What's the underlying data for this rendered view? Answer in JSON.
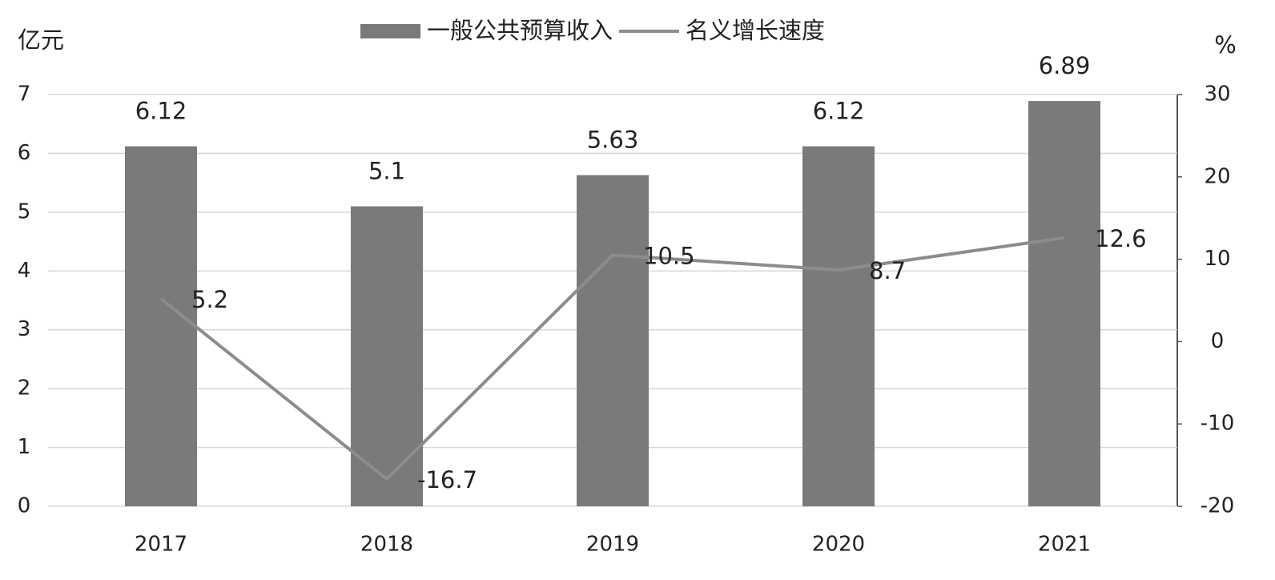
{
  "chart_data": {
    "type": "bar",
    "y_label": "亿元",
    "y2_label": "%",
    "categories": [
      "2017",
      "2018",
      "2019",
      "2020",
      "2021"
    ],
    "series": [
      {
        "name": "一般公共预算收入",
        "type": "bar",
        "color": "#7a7a7a",
        "values": [
          6.12,
          5.1,
          5.63,
          6.12,
          6.89
        ]
      },
      {
        "name": "名义增长速度",
        "type": "line",
        "axis": "y2",
        "color": "#8c8c8c",
        "values": [
          5.2,
          -16.7,
          10.5,
          8.7,
          12.6
        ]
      }
    ],
    "ylim": [
      0,
      7
    ],
    "yticks": [
      0,
      1,
      2,
      3,
      4,
      5,
      6,
      7
    ],
    "y2lim": [
      -20,
      30
    ],
    "y2ticks": [
      -20,
      -10,
      0,
      10,
      20,
      30
    ],
    "grid": true,
    "legend": "top"
  }
}
